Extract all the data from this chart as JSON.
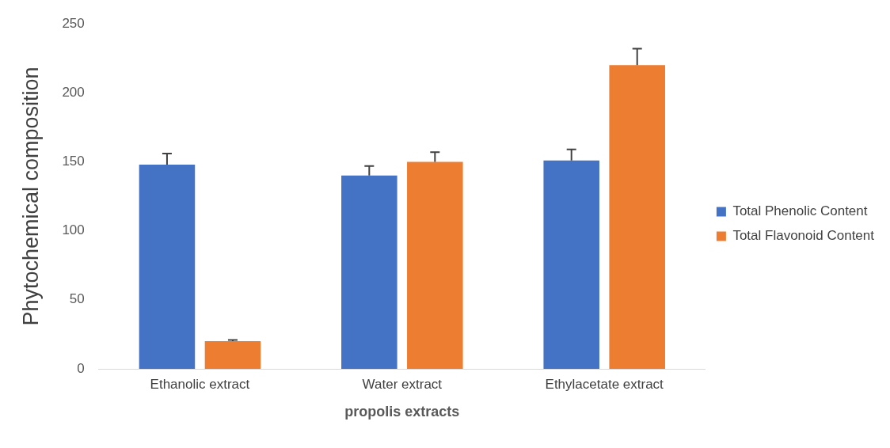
{
  "chart_data": {
    "type": "bar",
    "xlabel": "propolis extracts",
    "ylabel": "Phytochemical composition",
    "categories": [
      "Ethanolic extract",
      "Water extract",
      "Ethylacetate extract"
    ],
    "series": [
      {
        "name": "Total Phenolic Content",
        "color": "#4472c4",
        "values": [
          148,
          140,
          151
        ],
        "errors": [
          [
            148,
            156
          ],
          [
            140,
            147
          ],
          [
            151,
            159
          ]
        ]
      },
      {
        "name": "Total Flavonoid Content",
        "color": "#ed7d31",
        "values": [
          20,
          150,
          220
        ],
        "errors": [
          [
            20,
            21
          ],
          [
            150,
            157
          ],
          [
            220,
            232
          ]
        ]
      }
    ],
    "ylim": [
      0,
      250
    ],
    "yticks": [
      0,
      50,
      100,
      150,
      200,
      250
    ],
    "grid": false,
    "legend": "right"
  }
}
